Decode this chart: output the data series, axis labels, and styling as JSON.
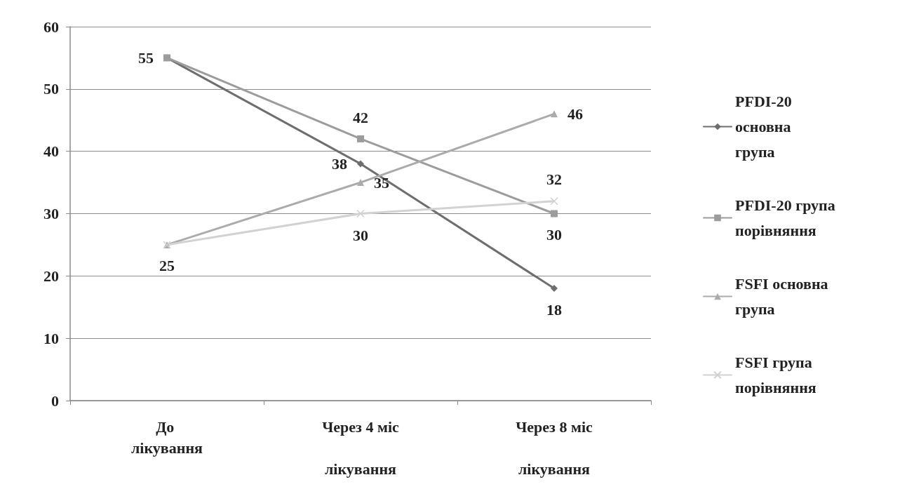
{
  "chart_data": {
    "type": "line",
    "categories": [
      "До лікування",
      "Через 4 міс лікування",
      "Через 8 міс лікування"
    ],
    "series": [
      {
        "name": "PFDI-20 основна група",
        "color": "#6e6e6e",
        "marker": "diamond",
        "values": [
          55,
          38,
          18
        ],
        "value_labels": [
          "55",
          "38",
          "18"
        ]
      },
      {
        "name": "PFDI-20 група порівняння",
        "color": "#9c9c9c",
        "marker": "square",
        "values": [
          55,
          42,
          30
        ],
        "value_labels": [
          null,
          "42",
          "30"
        ]
      },
      {
        "name": "FSFI основна група",
        "color": "#ababab",
        "marker": "triangle",
        "values": [
          25,
          35,
          46
        ],
        "value_labels": [
          "25",
          "35",
          "46"
        ]
      },
      {
        "name": "FSFI група порівняння",
        "color": "#d2d2d2",
        "marker": "cross",
        "values": [
          25,
          30,
          32
        ],
        "value_labels": [
          null,
          "30",
          "32"
        ]
      }
    ],
    "ylim": [
      0,
      60
    ],
    "yticks": [
      0,
      10,
      20,
      30,
      40,
      50,
      60
    ],
    "grid": "y",
    "legend": "right"
  }
}
